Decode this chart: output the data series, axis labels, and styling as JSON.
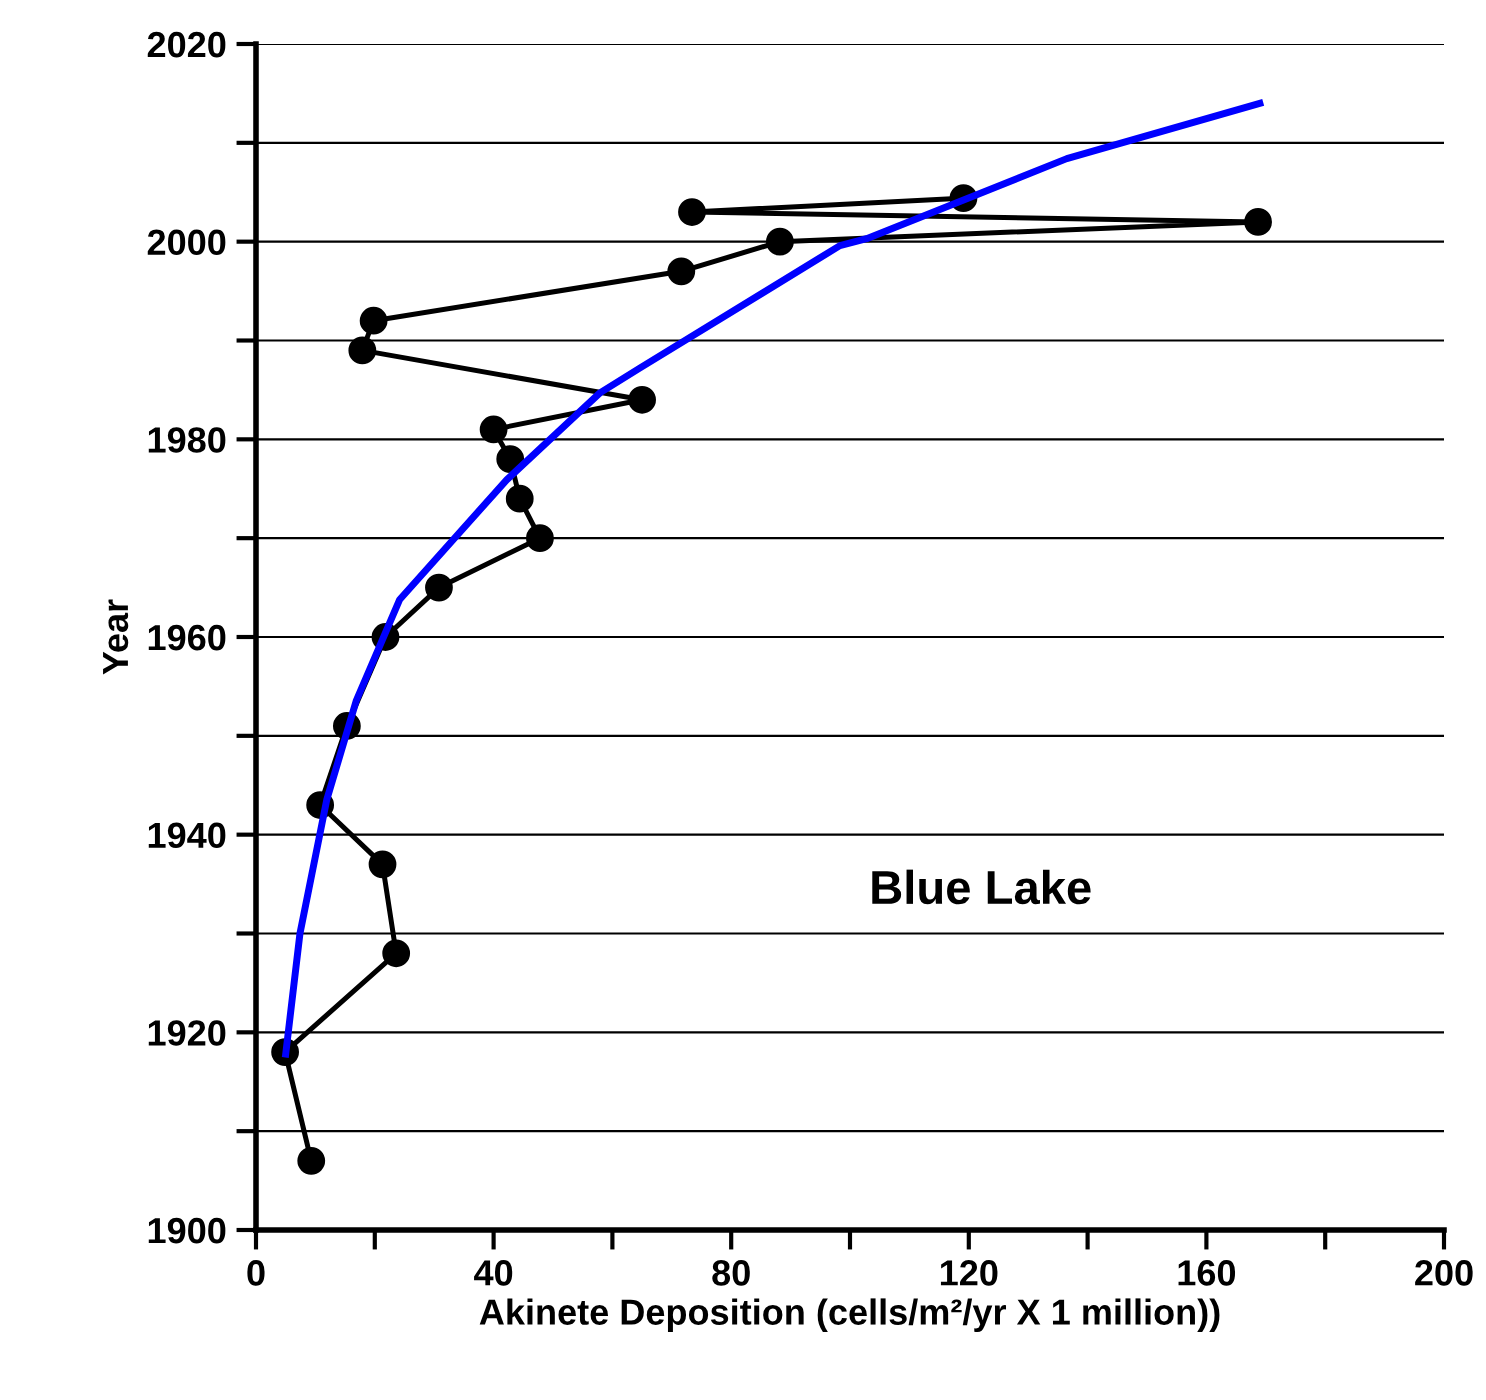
{
  "chart_data": {
    "type": "line",
    "xlabel": "Akinete Deposition (cells/m²/yr X 1 million))",
    "ylabel": "Year",
    "annotations": [
      "Blue Lake"
    ],
    "series": [
      {
        "color": "#000000",
        "marker": "circle",
        "line_style": "solid",
        "x": [
          9.3,
          4.9,
          23.6,
          21.3,
          10.8,
          15.3,
          21.8,
          30.8,
          47.8,
          44.4,
          42.8,
          40.0,
          65.0,
          17.9,
          19.8,
          71.6,
          88.2,
          168.7,
          73.4,
          119.1
        ],
        "values": [
          1907,
          1918,
          1928,
          1937,
          1943,
          1951,
          1960,
          1965,
          1970,
          1974,
          1978,
          1981,
          1984,
          1989,
          1992,
          1997,
          2000,
          2002,
          2003,
          2004.4
        ]
      },
      {
        "color": "#0000ff",
        "marker": "none",
        "line_style": "solid",
        "x": [
          5.0,
          7.4,
          11.9,
          16.9,
          24.2,
          42.2,
          57.9,
          64.6,
          98.3,
          102.8,
          136.5,
          169.0
        ],
        "values": [
          1917.8,
          1930,
          1943.5,
          1953.6,
          1963.8,
          1975.9,
          1984.7,
          1987.2,
          1999.6,
          2000.3,
          2008.4,
          2014.0
        ]
      }
    ],
    "xlim": [
      0,
      200
    ],
    "xticks": [
      0,
      {
        "value": 20,
        "label": null
      },
      40,
      {
        "value": 60,
        "label": null
      },
      80,
      {
        "value": 100,
        "label": null
      },
      120,
      {
        "value": 140,
        "label": null
      },
      160,
      {
        "value": 180,
        "label": null
      },
      200
    ],
    "ylim": [
      1900,
      2020
    ],
    "yticks": [
      1900,
      {
        "value": 1910,
        "label": null
      },
      1920,
      {
        "value": 1930,
        "label": null
      },
      1940,
      {
        "value": 1950,
        "label": null
      },
      1960,
      {
        "value": 1970,
        "label": null
      },
      1980,
      {
        "value": 1990,
        "label": null
      },
      2000,
      {
        "value": 2010,
        "label": null
      },
      2020
    ],
    "grid": "y",
    "legend": false
  }
}
